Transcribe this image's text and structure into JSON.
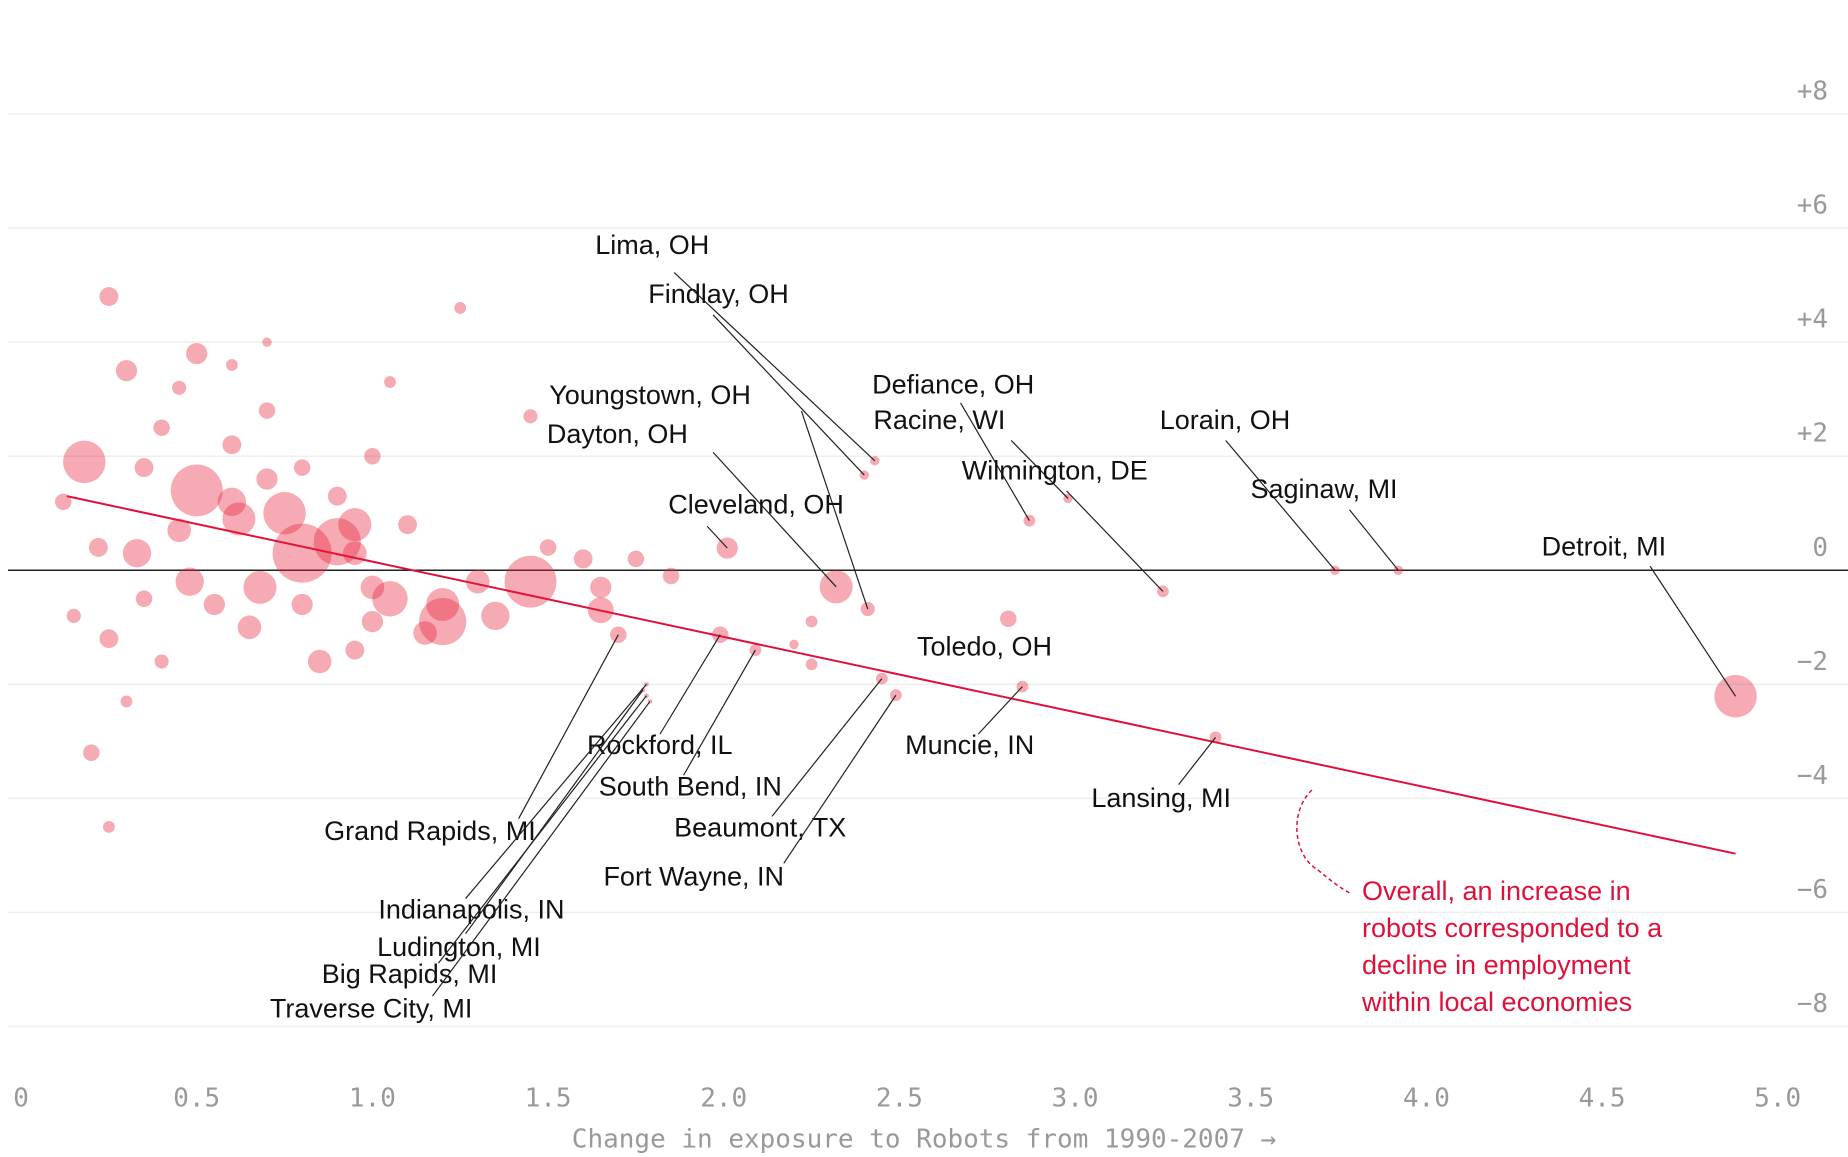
{
  "chart_data": {
    "type": "scatter",
    "xlabel": "Change in exposure to Robots from 1990-2007 →",
    "xlim": [
      -0.06,
      5.2
    ],
    "ylim": [
      -8.5,
      10
    ],
    "xticks": [
      0,
      0.5,
      {
        "value": 1,
        "label": "1.0"
      },
      1.5,
      {
        "value": 2,
        "label": "2.0"
      },
      2.5,
      {
        "value": 3,
        "label": "3.0"
      },
      3.5,
      {
        "value": 4,
        "label": "4.0"
      },
      4.5,
      {
        "value": 5,
        "label": "5.0"
      }
    ],
    "yticks": [
      {
        "value": 8,
        "label": "+8"
      },
      {
        "value": 6,
        "label": "+6"
      },
      {
        "value": 4,
        "label": "+4"
      },
      {
        "value": 2,
        "label": "+2"
      },
      0,
      {
        "value": -2,
        "label": "−2"
      },
      {
        "value": -4,
        "label": "−4"
      },
      {
        "value": -6,
        "label": "−6"
      },
      {
        "value": -8,
        "label": "−8"
      }
    ],
    "grid": true,
    "color": "#e8203a",
    "annotation": [
      "Overall, an increase in",
      "robots corresponded to a",
      "decline in employment",
      "within local economies"
    ],
    "trend_line": {
      "x": [
        0.13,
        4.88
      ],
      "values": [
        1.3,
        -4.97
      ]
    },
    "series": [
      {
        "labels": [
          "Lima, OH",
          "Findlay, OH",
          "Youngstown, OH",
          "Dayton, OH",
          "Cleveland, OH",
          "Defiance, OH",
          "Racine, WI",
          "Wilmington, DE",
          "Lorain, OH",
          "Saginaw, MI",
          "Detroit, MI",
          "Toledo, OH",
          "Muncie, IN",
          "Lansing, MI",
          "Grand Rapids, MI",
          "Rockford, IL",
          "South Bend, IN",
          "Beaumont, TX",
          "Fort Wayne, IN",
          "Indianapolis, IN",
          "Ludington, MI",
          "Big Rapids, MI",
          "Traverse City, MI",
          null,
          null,
          null,
          null,
          null,
          null,
          null,
          null,
          null,
          null,
          null,
          null,
          null,
          null,
          null,
          null,
          null,
          null,
          null,
          null,
          null,
          null,
          null,
          null,
          null,
          null,
          null,
          null,
          null,
          null,
          null,
          null,
          null,
          null,
          null,
          null,
          null,
          null,
          null,
          null,
          null,
          null,
          null,
          null,
          null,
          null,
          null,
          null,
          null,
          null,
          null,
          null,
          null,
          null,
          null,
          null,
          null,
          null,
          null,
          null,
          null,
          null,
          null
        ],
        "x": [
          2.43,
          2.4,
          2.41,
          2.32,
          2.01,
          2.87,
          2.98,
          3.25,
          3.74,
          3.92,
          4.88,
          2.81,
          2.85,
          3.4,
          1.7,
          1.99,
          2.09,
          2.45,
          2.49,
          1.78,
          1.77,
          1.78,
          1.79,
          0.18,
          0.5,
          0.62,
          0.75,
          0.8,
          0.9,
          0.95,
          1.05,
          1.2,
          1.2,
          1.45,
          0.33,
          0.45,
          0.35,
          0.3,
          0.5,
          0.25,
          0.4,
          0.6,
          0.7,
          0.55,
          0.65,
          0.8,
          0.85,
          0.95,
          0.2,
          0.15,
          0.25,
          0.35,
          0.4,
          1.0,
          1.1,
          1.3,
          1.35,
          1.6,
          1.65,
          1.65,
          1.75,
          1.85,
          1.5,
          1.45,
          1.25,
          0.25,
          0.3,
          0.45,
          0.6,
          0.7,
          0.95,
          0.12,
          0.22,
          0.6,
          0.7,
          0.8,
          0.9,
          1.0,
          1.05,
          2.25,
          2.2,
          1.0,
          1.15,
          0.48,
          0.68,
          2.25
        ],
        "values": [
          1.92,
          1.67,
          -0.68,
          -0.29,
          0.39,
          0.87,
          1.26,
          -0.37,
          0.0,
          0.0,
          -2.21,
          -0.85,
          -2.04,
          -2.93,
          -1.13,
          -1.13,
          -1.4,
          -1.9,
          -2.19,
          -2.0,
          -2.1,
          -2.2,
          -2.3,
          1.9,
          1.4,
          0.9,
          1.0,
          0.3,
          0.5,
          0.8,
          -0.5,
          -0.9,
          -0.6,
          -0.2,
          0.3,
          0.7,
          1.8,
          3.5,
          3.8,
          4.8,
          2.5,
          2.2,
          2.8,
          -0.6,
          -1.0,
          -0.6,
          -1.6,
          -1.4,
          -3.2,
          -0.8,
          -1.2,
          -0.5,
          -1.6,
          -0.3,
          0.8,
          -0.2,
          -0.8,
          0.2,
          -0.3,
          -0.7,
          0.2,
          -0.1,
          0.4,
          2.7,
          4.6,
          -4.5,
          -2.3,
          3.2,
          3.6,
          4.0,
          0.3,
          1.2,
          0.4,
          1.2,
          1.6,
          1.8,
          1.3,
          2.0,
          3.3,
          -0.9,
          -1.3,
          -0.9,
          -1.1,
          -0.2,
          -0.3,
          -1.65
        ],
        "sizes": [
          4,
          4,
          6,
          14,
          9,
          5,
          4,
          5,
          4,
          4,
          18,
          7,
          5,
          5,
          7,
          7,
          5,
          5,
          5,
          2,
          2,
          2,
          2,
          18,
          22,
          14,
          18,
          25,
          20,
          14,
          15,
          20,
          14,
          22,
          12,
          10,
          8,
          9,
          9,
          8,
          7,
          8,
          7,
          9,
          10,
          9,
          10,
          8,
          7,
          6,
          8,
          7,
          6,
          10,
          8,
          10,
          12,
          8,
          9,
          11,
          7,
          7,
          7,
          6,
          5,
          5,
          5,
          6,
          5,
          4,
          10,
          7,
          8,
          12,
          9,
          7,
          8,
          7,
          5,
          5,
          4,
          9,
          10,
          12,
          14,
          5
        ]
      }
    ]
  }
}
